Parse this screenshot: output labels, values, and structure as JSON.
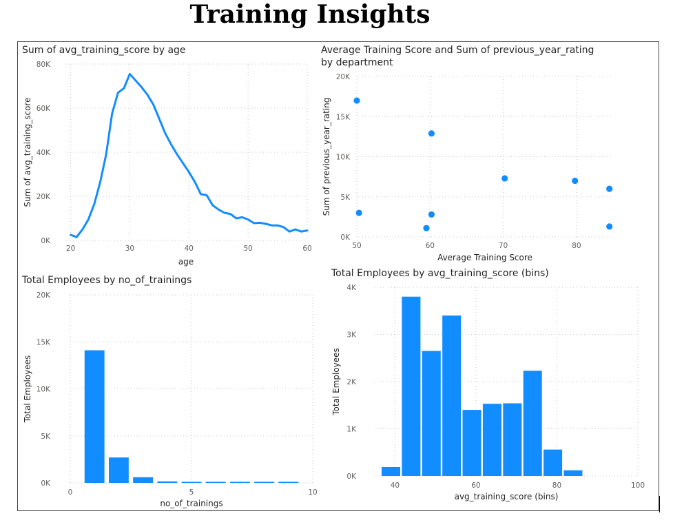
{
  "page": {
    "title": "Training Insights"
  },
  "colors": {
    "accent": "#118DFF",
    "grid": "#c8c6c4",
    "text": "#252423",
    "tick": "#605e5c"
  },
  "chart_data": [
    {
      "id": "line",
      "type": "line",
      "title": "Sum of avg_training_score by age",
      "xlabel": "age",
      "ylabel": "Sum of avg_training_score",
      "xlim": [
        19,
        60
      ],
      "ylim": [
        0,
        80000
      ],
      "xticks": [
        20,
        30,
        40,
        50,
        60
      ],
      "xtick_labels": [
        "20",
        "30",
        "40",
        "50",
        "60"
      ],
      "yticks": [
        0,
        20000,
        40000,
        60000,
        80000
      ],
      "ytick_labels": [
        "0K",
        "20K",
        "40K",
        "60K",
        "80K"
      ],
      "grid": true,
      "x": [
        20,
        21,
        22,
        23,
        24,
        25,
        26,
        27,
        28,
        29,
        30,
        31,
        32,
        33,
        34,
        35,
        36,
        37,
        38,
        39,
        40,
        41,
        42,
        43,
        44,
        45,
        46,
        47,
        48,
        49,
        50,
        51,
        52,
        53,
        54,
        55,
        56,
        57,
        58,
        59,
        60
      ],
      "values": [
        2500,
        1500,
        5000,
        9500,
        16500,
        26500,
        39000,
        57500,
        67000,
        69000,
        75500,
        72500,
        69500,
        66000,
        61500,
        55000,
        48500,
        43500,
        39000,
        35000,
        31000,
        26500,
        21000,
        20500,
        16000,
        14000,
        12500,
        12000,
        10000,
        10500,
        9500,
        7800,
        8000,
        7500,
        6800,
        6800,
        6000,
        4000,
        5000,
        4000,
        4500
      ]
    },
    {
      "id": "scatter",
      "type": "scatter",
      "title_lines": [
        "Average Training Score and Sum of previous_year_rating",
        "by department"
      ],
      "xlabel": "Average Training Score",
      "ylabel": "Sum of previous_year_rating",
      "xlim": [
        50,
        85
      ],
      "ylim": [
        0,
        20000
      ],
      "xticks": [
        50,
        60,
        70,
        80
      ],
      "xtick_labels": [
        "50",
        "60",
        "70",
        "80"
      ],
      "yticks": [
        0,
        5000,
        10000,
        15000,
        20000
      ],
      "ytick_labels": [
        "0K",
        "5K",
        "10K",
        "15K",
        "20K"
      ],
      "grid": true,
      "points": [
        {
          "x": 50.0,
          "y": 17000
        },
        {
          "x": 50.3,
          "y": 3000
        },
        {
          "x": 59.5,
          "y": 1100
        },
        {
          "x": 60.2,
          "y": 2800
        },
        {
          "x": 60.2,
          "y": 12900
        },
        {
          "x": 70.2,
          "y": 7300
        },
        {
          "x": 79.8,
          "y": 7000
        },
        {
          "x": 84.5,
          "y": 6000
        },
        {
          "x": 84.5,
          "y": 1300
        }
      ]
    },
    {
      "id": "bar1",
      "type": "bar",
      "title": "Total Employees by no_of_trainings",
      "xlabel": "no_of_trainings",
      "ylabel": "Total Employees",
      "xlim": [
        0,
        10
      ],
      "ylim": [
        0,
        20000
      ],
      "xticks": [
        0,
        5,
        10
      ],
      "xtick_labels": [
        "0",
        "5",
        "10"
      ],
      "yticks": [
        0,
        5000,
        10000,
        15000,
        20000
      ],
      "ytick_labels": [
        "0K",
        "5K",
        "10K",
        "15K",
        "20K"
      ],
      "grid": true,
      "bar_width": 0.82,
      "x": [
        1,
        2,
        3,
        4,
        5,
        6,
        7,
        8,
        9
      ],
      "values": [
        14100,
        2700,
        600,
        150,
        70,
        60,
        50,
        40,
        30
      ]
    },
    {
      "id": "bar2",
      "type": "bar",
      "title": "Total Employees by avg_training_score (bins)",
      "xlabel": "avg_training_score (bins)",
      "ylabel": "Total Employees",
      "xlim": [
        35,
        100
      ],
      "ylim": [
        0,
        4000
      ],
      "xticks": [
        40,
        60,
        80,
        100
      ],
      "xtick_labels": [
        "40",
        "60",
        "80",
        "100"
      ],
      "yticks": [
        0,
        1000,
        2000,
        3000,
        4000
      ],
      "ytick_labels": [
        "0K",
        "1K",
        "2K",
        "3K",
        "4K"
      ],
      "grid": true,
      "bar_width": 4.6,
      "x": [
        39,
        44,
        49,
        54,
        59,
        64,
        69,
        74,
        79,
        84,
        89,
        94
      ],
      "values": [
        190,
        3800,
        2650,
        3400,
        1400,
        1530,
        1540,
        2230,
        560,
        120,
        0,
        0
      ]
    }
  ]
}
